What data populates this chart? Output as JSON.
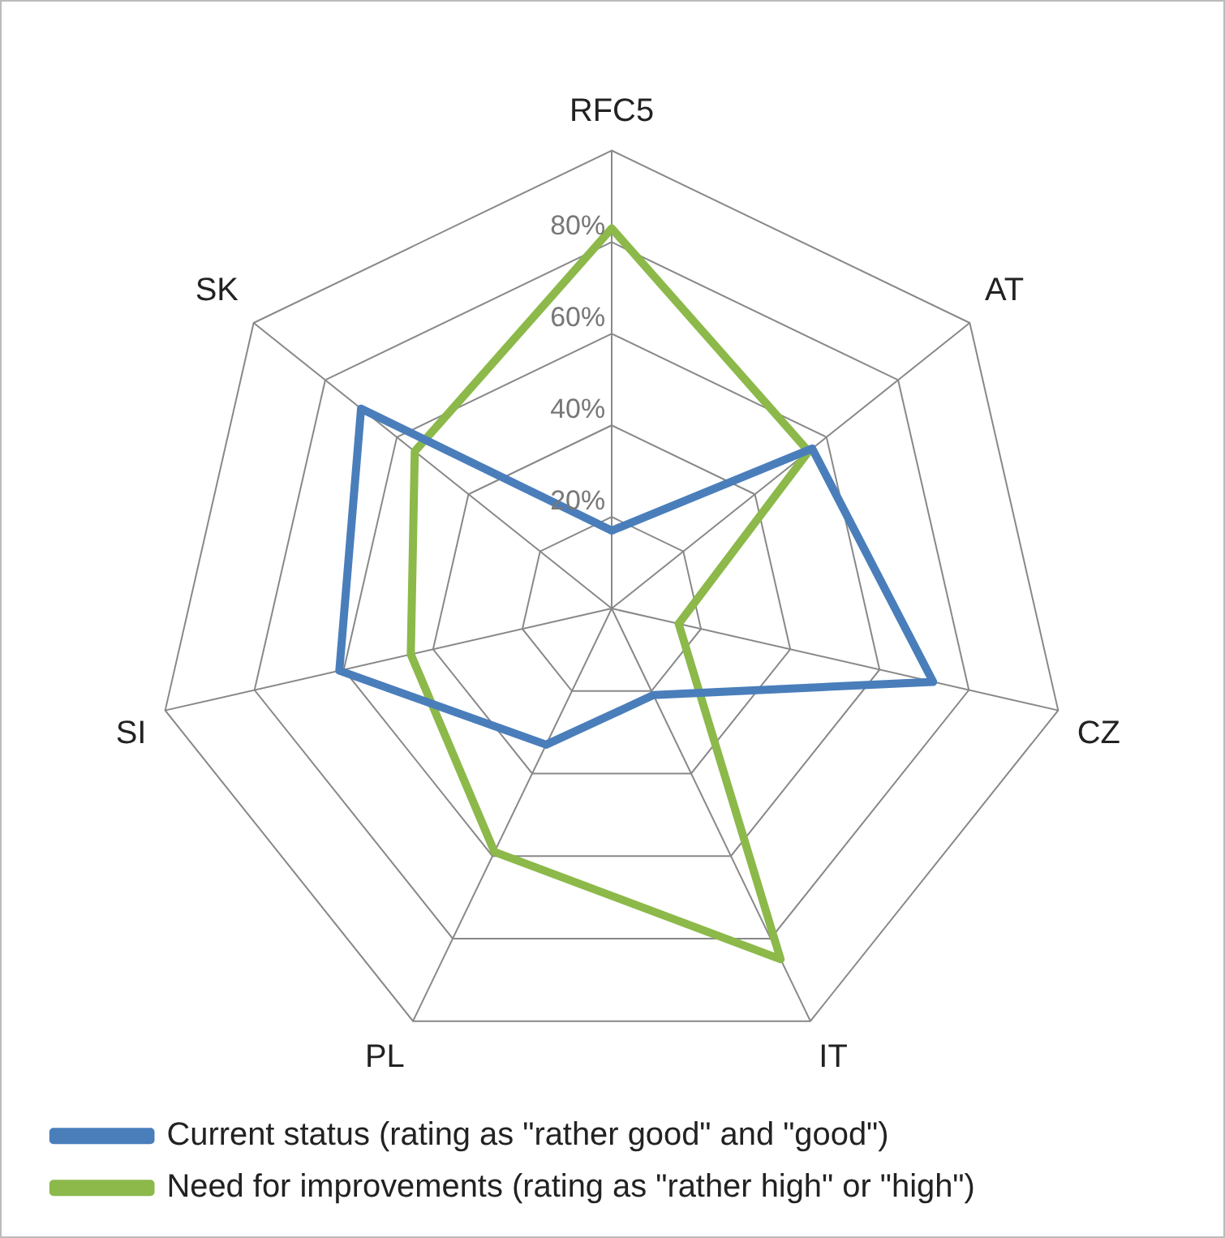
{
  "chart_data": {
    "type": "radar",
    "categories": [
      "RFC5",
      "AT",
      "CZ",
      "IT",
      "PL",
      "SI",
      "SK"
    ],
    "series": [
      {
        "name": "Current status (rating as \"rather good\" and \"good\")",
        "color": "#4a7ebb",
        "values": [
          17,
          56,
          72,
          21,
          33,
          61,
          70
        ]
      },
      {
        "name": "Need for improvements (rating as \"rather high\" or \"high\")",
        "color": "#8cb94a",
        "values": [
          83,
          55,
          15,
          85,
          59,
          45,
          55
        ]
      }
    ],
    "ylim": [
      0,
      100
    ],
    "yticks": [
      {
        "value": 20,
        "label": "20%"
      },
      {
        "value": 40,
        "label": "40%"
      },
      {
        "value": 60,
        "label": "60%"
      },
      {
        "value": 80,
        "label": "80%"
      }
    ],
    "grid": true,
    "legend": "bottom",
    "marker": "none",
    "line_style": "solid"
  }
}
